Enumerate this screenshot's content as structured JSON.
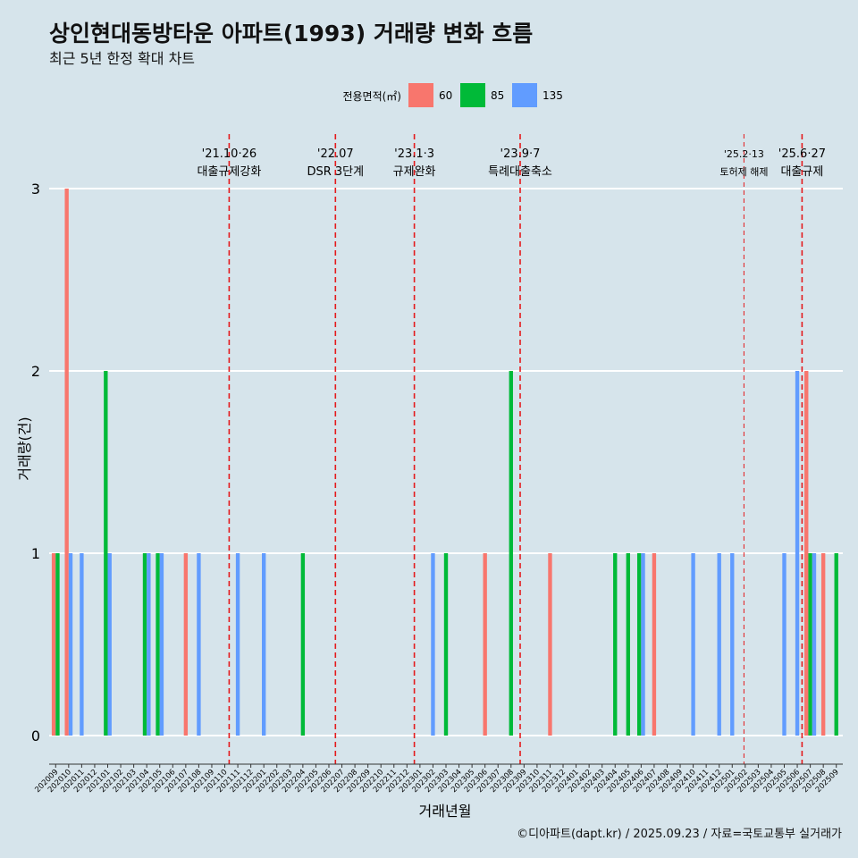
{
  "title": "상인현대동방타운 아파트(1993) 거래량 변화 흐름",
  "subtitle": "최근 5년 한정 확대 차트",
  "caption": "©디아파트(dapt.kr) / 2025.09.23 / 자료=국토교통부 실거래가",
  "chart_data": {
    "type": "bar",
    "xlabel": "거래년월",
    "ylabel": "거래량(건)",
    "ylim": [
      0,
      3
    ],
    "yticks": [
      0,
      1,
      2,
      3
    ],
    "legend": {
      "title": "전용면적(㎡)",
      "position": "top",
      "items": [
        {
          "label": "60",
          "color": "#f8766d"
        },
        {
          "label": "85",
          "color": "#00ba38"
        },
        {
          "label": "135",
          "color": "#619cff"
        }
      ]
    },
    "categories": [
      "202009",
      "202010",
      "202011",
      "202012",
      "202101",
      "202102",
      "202103",
      "202104",
      "202105",
      "202106",
      "202107",
      "202108",
      "202109",
      "202110",
      "202111",
      "202112",
      "202201",
      "202202",
      "202203",
      "202204",
      "202205",
      "202206",
      "202207",
      "202208",
      "202209",
      "202210",
      "202211",
      "202212",
      "202301",
      "202302",
      "202303",
      "202304",
      "202305",
      "202306",
      "202307",
      "202308",
      "202309",
      "202310",
      "202311",
      "202312",
      "202401",
      "202402",
      "202403",
      "202404",
      "202405",
      "202406",
      "202407",
      "202408",
      "202409",
      "202410",
      "202411",
      "202412",
      "202501",
      "202502",
      "202503",
      "202504",
      "202505",
      "202506",
      "202507",
      "202508",
      "202509"
    ],
    "series": [
      {
        "name": "60",
        "values": [
          1,
          3,
          0,
          0,
          0,
          0,
          0,
          0,
          0,
          0,
          1,
          0,
          0,
          0,
          0,
          0,
          0,
          0,
          0,
          0,
          0,
          0,
          0,
          0,
          0,
          0,
          0,
          0,
          0,
          0,
          0,
          0,
          0,
          1,
          0,
          0,
          0,
          0,
          1,
          0,
          0,
          0,
          0,
          0,
          0,
          0,
          1,
          0,
          0,
          0,
          0,
          0,
          0,
          0,
          0,
          0,
          0,
          0,
          2,
          1,
          0
        ]
      },
      {
        "name": "85",
        "values": [
          1,
          0,
          0,
          0,
          2,
          0,
          0,
          1,
          1,
          0,
          0,
          0,
          0,
          0,
          0,
          0,
          0,
          0,
          0,
          1,
          0,
          0,
          0,
          0,
          0,
          0,
          0,
          0,
          0,
          0,
          1,
          0,
          0,
          0,
          0,
          2,
          0,
          0,
          0,
          0,
          0,
          0,
          0,
          1,
          1,
          1,
          0,
          0,
          0,
          0,
          0,
          0,
          0,
          0,
          0,
          0,
          0,
          0,
          1,
          0,
          1
        ]
      },
      {
        "name": "135",
        "values": [
          0,
          1,
          1,
          0,
          1,
          0,
          0,
          1,
          1,
          0,
          0,
          1,
          0,
          0,
          1,
          0,
          1,
          0,
          0,
          0,
          0,
          0,
          0,
          0,
          0,
          0,
          0,
          0,
          0,
          1,
          0,
          0,
          0,
          0,
          0,
          0,
          0,
          0,
          0,
          0,
          0,
          0,
          0,
          0,
          0,
          1,
          0,
          0,
          0,
          1,
          0,
          1,
          1,
          0,
          0,
          0,
          1,
          2,
          1,
          0,
          0
        ]
      }
    ],
    "events": [
      {
        "date": "'21.10·26",
        "label": "대출규제강화",
        "month": "202110",
        "day": 26,
        "style": "major"
      },
      {
        "date": "'22.07",
        "label": "DSR 3단계",
        "month": "202207",
        "day": 1,
        "style": "major"
      },
      {
        "date": "'23.1·3",
        "label": "규제완화",
        "month": "202301",
        "day": 3,
        "style": "major"
      },
      {
        "date": "'23.9·7",
        "label": "특례대출축소",
        "month": "202309",
        "day": 7,
        "style": "major"
      },
      {
        "date": "'25.2·13",
        "label": "토허제 해제",
        "month": "202502",
        "day": 13,
        "style": "minor"
      },
      {
        "date": "'25.6·27",
        "label": "대출규제",
        "month": "202506",
        "day": 27,
        "style": "major"
      }
    ]
  }
}
